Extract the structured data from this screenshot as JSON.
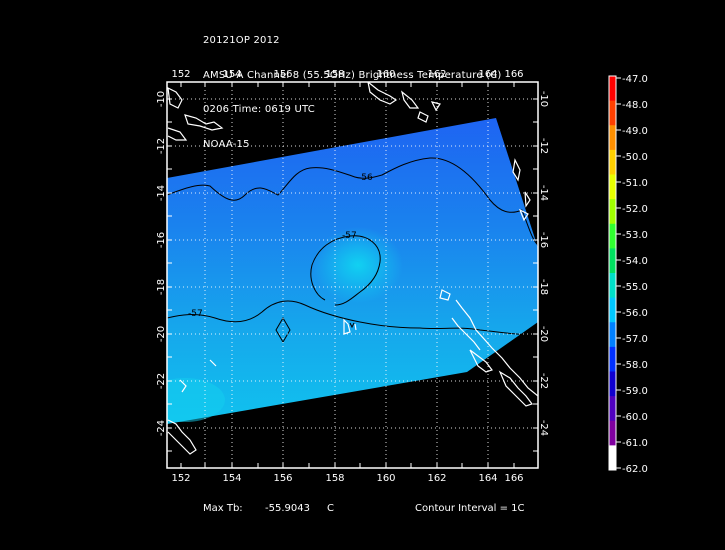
{
  "header": {
    "line1": "20121OP 2012",
    "line2": "AMSU-A Channel 8 (55.5GHz) Brightness Temperature (C)",
    "line3": "0206 Time: 0619 UTC",
    "line4": "NOAA-15"
  },
  "map": {
    "lon_ticks": [
      "152",
      "154",
      "156",
      "158",
      "160",
      "162",
      "164",
      "166"
    ],
    "lat_ticks": [
      "-10",
      "-12",
      "-14",
      "-16",
      "-18",
      "-20",
      "-22",
      "-24"
    ],
    "contour_labels": [
      "-56",
      "-57",
      "-57"
    ],
    "lon_range": [
      151,
      167
    ],
    "lat_range": [
      -25,
      -9.5
    ]
  },
  "colorbar": {
    "labels": [
      "-47.0",
      "-48.0",
      "-49.0",
      "-50.0",
      "-51.0",
      "-52.0",
      "-53.0",
      "-54.0",
      "-55.0",
      "-56.0",
      "-57.0",
      "-58.0",
      "-59.0",
      "-60.0",
      "-61.0",
      "-62.0"
    ],
    "colors": [
      "#ff0000",
      "#ff4000",
      "#ff9000",
      "#ffd000",
      "#e8ff00",
      "#a0ff00",
      "#30ff30",
      "#00e060",
      "#00e0c8",
      "#00c8ff",
      "#0080ff",
      "#0030ff",
      "#1000d0",
      "#5000c0",
      "#8000a0",
      "#ffffff"
    ]
  },
  "footer": {
    "max_label": "Max Tb:",
    "max_value": "-55.9043",
    "max_unit": "C",
    "contour": "Contour Interval = 1C"
  }
}
